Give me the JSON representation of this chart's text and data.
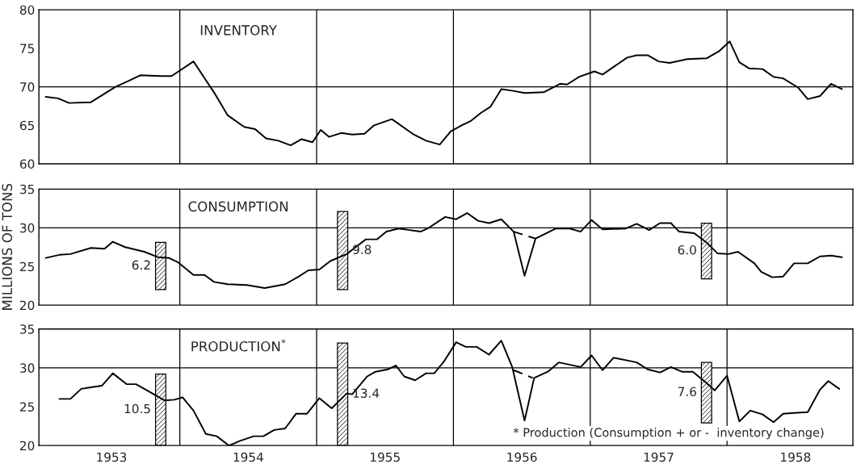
{
  "chart_data": [
    {
      "type": "line",
      "title": "INVENTORY",
      "xlim": [
        1952.97,
        1958.92
      ],
      "ylim": [
        60,
        80
      ],
      "yticks": [
        60,
        65,
        70,
        75,
        80
      ],
      "tick_labels": "y",
      "ref_lines": [
        {
          "axis": "y",
          "value": 70,
          "color": "#000000"
        },
        {
          "axis": "x",
          "value": 1954,
          "color": "#000000"
        },
        {
          "axis": "x",
          "value": 1955,
          "color": "#000000"
        },
        {
          "axis": "x",
          "value": 1956,
          "color": "#000000"
        },
        {
          "axis": "x",
          "value": 1957,
          "color": "#000000"
        },
        {
          "axis": "x",
          "value": 1958,
          "color": "#000000"
        }
      ],
      "series": [
        {
          "color": "#000000",
          "x": [
            1953.02,
            1953.11,
            1953.19,
            1953.35,
            1953.53,
            1953.63,
            1953.71,
            1953.86,
            1953.94,
            1954.1,
            1954.26,
            1954.35,
            1954.47,
            1954.55,
            1954.63,
            1954.72,
            1954.81,
            1954.89,
            1954.97,
            1955.03,
            1955.09,
            1955.18,
            1955.26,
            1955.35,
            1955.42,
            1955.55,
            1955.71,
            1955.8,
            1955.9,
            1955.98,
            1956.06,
            1956.13,
            1956.2,
            1956.27,
            1956.35,
            1956.43,
            1956.52,
            1956.66,
            1956.78,
            1956.83,
            1956.92,
            1957.03,
            1957.09,
            1957.27,
            1957.34,
            1957.42,
            1957.5,
            1957.58,
            1957.71,
            1957.85,
            1957.94,
            1958.02,
            1958.09,
            1958.16,
            1958.26,
            1958.34,
            1958.41,
            1958.52,
            1958.59,
            1958.68,
            1958.76,
            1958.84
          ],
          "values": [
            68.7,
            68.5,
            67.9,
            68.0,
            70.0,
            70.8,
            71.5,
            71.4,
            71.4,
            73.3,
            69.0,
            66.3,
            64.8,
            64.5,
            63.3,
            63.0,
            62.4,
            63.2,
            62.8,
            64.4,
            63.5,
            64.0,
            63.8,
            63.9,
            65.0,
            65.8,
            63.8,
            63.0,
            62.5,
            64.2,
            65.0,
            65.6,
            66.6,
            67.4,
            69.7,
            69.5,
            69.2,
            69.3,
            70.4,
            70.3,
            71.3,
            72.0,
            71.6,
            73.8,
            74.1,
            74.1,
            73.3,
            73.1,
            73.6,
            73.7,
            74.6,
            75.9,
            73.2,
            72.4,
            72.3,
            71.3,
            71.1,
            69.9,
            68.4,
            68.8,
            70.4,
            69.7
          ]
        }
      ]
    },
    {
      "type": "line",
      "title": "CONSUMPTION",
      "ylabel": "MILLIONS OF TONS",
      "xlim": [
        1952.97,
        1958.92
      ],
      "ylim": [
        20,
        35
      ],
      "yticks": [
        20,
        25,
        30,
        35
      ],
      "tick_labels": "y",
      "ref_lines": [
        {
          "axis": "y",
          "value": 30,
          "color": "#000000"
        },
        {
          "axis": "x",
          "value": 1954,
          "color": "#000000"
        },
        {
          "axis": "x",
          "value": 1955,
          "color": "#000000"
        },
        {
          "axis": "x",
          "value": 1956,
          "color": "#000000"
        },
        {
          "axis": "x",
          "value": 1957,
          "color": "#000000"
        },
        {
          "axis": "x",
          "value": 1958,
          "color": "#000000"
        }
      ],
      "annotations": [
        "6.2",
        "9.8",
        "6.0"
      ],
      "series": [
        {
          "type": "bar",
          "color": "#000000",
          "x": [
            1953.86,
            1955.19,
            1957.85
          ],
          "base": [
            22.0,
            22.0,
            23.4
          ],
          "values": [
            6.1,
            10.1,
            7.2
          ]
        },
        {
          "color": "#000000",
          "x": [
            1953.02,
            1953.12,
            1953.2,
            1953.35,
            1953.45,
            1953.51,
            1953.6,
            1953.74,
            1953.84,
            1953.92,
            1953.99,
            1954.1,
            1954.18,
            1954.25,
            1954.35,
            1954.49,
            1954.62,
            1954.77,
            1954.87,
            1954.94,
            1955.02,
            1955.1,
            1955.22,
            1955.27,
            1955.36,
            1955.44,
            1955.51,
            1955.6,
            1955.68,
            1955.76,
            1955.82,
            1955.94,
            1956.02,
            1956.1,
            1956.18,
            1956.26,
            1956.35,
            1956.44,
            1956.52,
            1956.6,
            1956.75,
            1956.85,
            1956.93,
            1957.01,
            1957.09,
            1957.26,
            1957.34,
            1957.43,
            1957.51,
            1957.59,
            1957.65,
            1957.76,
            1957.85,
            1957.93,
            1958.01,
            1958.08,
            1958.2,
            1958.25,
            1958.33,
            1958.41,
            1958.49,
            1958.59,
            1958.68,
            1958.76,
            1958.84
          ],
          "values": [
            26.1,
            26.5,
            26.6,
            27.4,
            27.3,
            28.2,
            27.5,
            26.9,
            26.2,
            26.1,
            25.5,
            23.9,
            23.9,
            23.0,
            22.7,
            22.6,
            22.2,
            22.7,
            23.7,
            24.5,
            24.6,
            25.7,
            26.6,
            27.3,
            28.5,
            28.5,
            29.5,
            29.9,
            29.7,
            29.5,
            30.0,
            31.4,
            31.1,
            31.9,
            30.9,
            30.6,
            31.1,
            29.5,
            23.8,
            28.6,
            29.9,
            29.9,
            29.5,
            31.0,
            29.8,
            29.9,
            30.5,
            29.7,
            30.6,
            30.6,
            29.5,
            29.3,
            28.1,
            26.7,
            26.6,
            26.9,
            25.4,
            24.3,
            23.6,
            23.7,
            25.4,
            25.4,
            26.3,
            26.4,
            26.2
          ]
        },
        {
          "color": "#000000",
          "line_style": "dashed",
          "x": [
            1956.44,
            1956.6
          ],
          "values": [
            29.5,
            28.6
          ]
        }
      ]
    },
    {
      "type": "line",
      "title": "PRODUCTION$^{*}$",
      "xlim": [
        1952.97,
        1958.92
      ],
      "ylim": [
        20,
        35
      ],
      "yticks": [
        20,
        25,
        30,
        35
      ],
      "xticks": [
        {
          "value": 1953.5,
          "label": "1953"
        },
        {
          "value": 1954.5,
          "label": "1954"
        },
        {
          "value": 1955.5,
          "label": "1955"
        },
        {
          "value": 1956.5,
          "label": "1956"
        },
        {
          "value": 1957.5,
          "label": "1957"
        },
        {
          "value": 1958.5,
          "label": "1958"
        }
      ],
      "ref_lines": [
        {
          "axis": "y",
          "value": 30,
          "color": "#000000"
        },
        {
          "axis": "x",
          "value": 1954,
          "color": "#000000"
        },
        {
          "axis": "x",
          "value": 1955,
          "color": "#000000"
        },
        {
          "axis": "x",
          "value": 1956,
          "color": "#000000"
        },
        {
          "axis": "x",
          "value": 1957,
          "color": "#000000"
        },
        {
          "axis": "x",
          "value": 1958,
          "color": "#000000"
        }
      ],
      "annotations": [
        "10.5",
        "13.4",
        "7.6",
        "* Production (Consumption + or -  inventory change)"
      ],
      "series": [
        {
          "type": "bar",
          "color": "#000000",
          "x": [
            1953.86,
            1955.19,
            1957.85
          ],
          "base": [
            20.0,
            20.0,
            22.9
          ],
          "values": [
            9.2,
            13.2,
            7.8
          ]
        },
        {
          "color": "#000000",
          "x": [
            1953.12,
            1953.2,
            1953.28,
            1953.35,
            1953.43,
            1953.51,
            1953.61,
            1953.68,
            1953.81,
            1953.89,
            1953.96,
            1954.02,
            1954.1,
            1954.19,
            1954.27,
            1954.36,
            1954.44,
            1954.54,
            1954.61,
            1954.69,
            1954.77,
            1954.85,
            1954.93,
            1955.02,
            1955.11,
            1955.22,
            1955.26,
            1955.37,
            1955.43,
            1955.52,
            1955.58,
            1955.64,
            1955.72,
            1955.8,
            1955.86,
            1955.93,
            1956.02,
            1956.09,
            1956.17,
            1956.26,
            1956.35,
            1956.43,
            1956.52,
            1956.59,
            1956.69,
            1956.77,
            1956.93,
            1957.01,
            1957.09,
            1957.17,
            1957.34,
            1957.42,
            1957.51,
            1957.59,
            1957.67,
            1957.75,
            1957.84,
            1957.91,
            1958.0,
            1958.09,
            1958.17,
            1958.26,
            1958.34,
            1958.41,
            1958.49,
            1958.59,
            1958.68,
            1958.74,
            1958.82
          ],
          "values": [
            26.0,
            26.0,
            27.3,
            27.5,
            27.7,
            29.3,
            27.9,
            27.9,
            26.6,
            25.8,
            25.9,
            26.2,
            24.5,
            21.5,
            21.2,
            20.0,
            20.6,
            21.2,
            21.2,
            22.0,
            22.2,
            24.1,
            24.1,
            26.1,
            24.8,
            26.7,
            26.6,
            28.9,
            29.5,
            29.8,
            30.3,
            28.9,
            28.4,
            29.3,
            29.3,
            30.8,
            33.3,
            32.7,
            32.7,
            31.7,
            33.5,
            30.1,
            23.2,
            28.7,
            29.5,
            30.7,
            30.1,
            31.6,
            29.7,
            31.3,
            30.7,
            29.8,
            29.4,
            30.1,
            29.5,
            29.5,
            28.2,
            27.1,
            29.0,
            23.1,
            24.5,
            24.0,
            23.0,
            24.1,
            24.2,
            24.3,
            27.2,
            28.3,
            27.3
          ]
        },
        {
          "color": "#000000",
          "line_style": "dashed",
          "x": [
            1956.44,
            1956.58
          ],
          "values": [
            29.7,
            28.7
          ]
        }
      ]
    }
  ]
}
